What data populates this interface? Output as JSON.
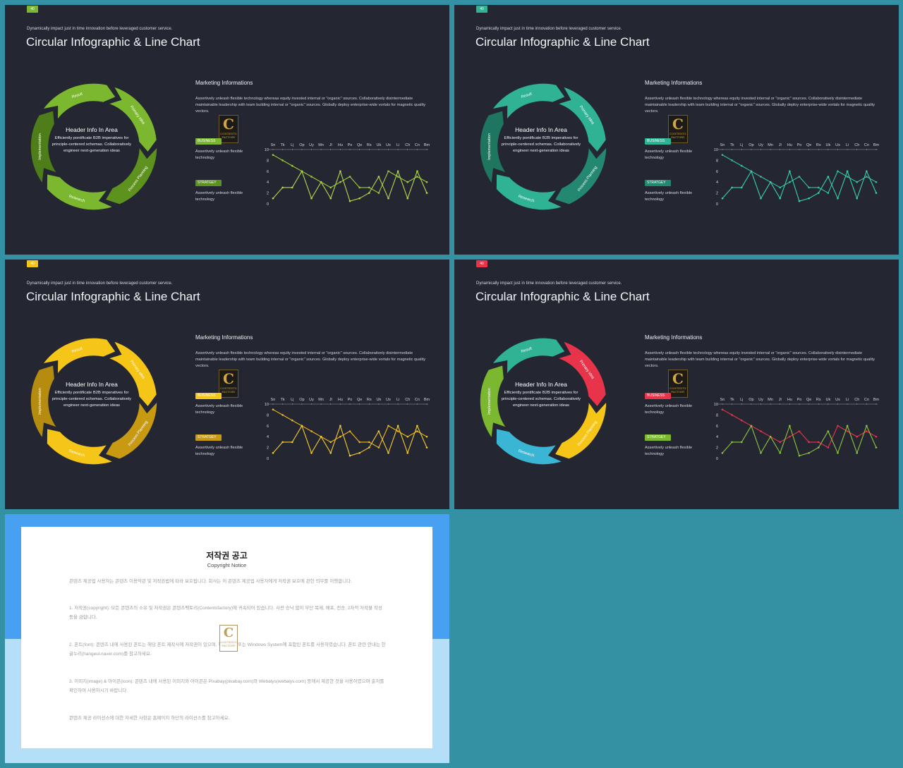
{
  "slides": [
    {
      "badge": "40",
      "subtitle": "Dynamically impact just in time innovation before leveraged customer service.",
      "title": "Circular Infographic & Line Chart",
      "center": {
        "title": "Header Info In Area",
        "body": "Efficiently pontificate B2B imperatives for principle-centered schemas. Collaboratively engineer next-generation ideas"
      },
      "ring_labels": [
        "Primary Idea",
        "Process Planning",
        "Research",
        "Implementation",
        "Result"
      ],
      "marketing": {
        "heading": "Marketing Informations",
        "body": "Assertively unleash flexible technology whereas equity invested internal or \"organic\" sources. Collaboratively disintermediate maintainable leadership with team building internal or \"organic\" sources. Globally deploy enterprise-wide vortals for magnetic quality vectors."
      },
      "tag1": "BUSINESS",
      "tag1_desc": "Assertively unleash flexible technology",
      "tag2": "STRATGEY",
      "tag2_desc": "Assertively unleash flexible technology",
      "logo": {
        "letter": "C",
        "text": "CONTENTS FACTORY"
      },
      "colors": {
        "badge": "#7cb82f",
        "tag1": "#7cb82f",
        "tag2": "#5e921f",
        "segments": [
          "#7cb82f",
          "#5e921f",
          "#7cb82f",
          "#4f7d1a",
          "#7cb82f"
        ],
        "series": [
          "#9ccc3a",
          "#b6d84a"
        ]
      }
    },
    {
      "badge": "40",
      "subtitle": "Dynamically impact just in time innovation before leveraged customer service.",
      "title": "Circular Infographic & Line Chart",
      "center": {
        "title": "Header Info In Area",
        "body": "Efficiently pontificate B2B imperatives for principle-centered schemas. Collaboratively engineer next-generation ideas"
      },
      "ring_labels": [
        "Primary Idea",
        "Process Planning",
        "Research",
        "Implementation",
        "Result"
      ],
      "marketing": {
        "heading": "Marketing Informations",
        "body": "Assertively unleash flexible technology whereas equity invested internal or \"organic\" sources. Collaboratively disintermediate maintainable leadership with team building internal or \"organic\" sources. Globally deploy enterprise-wide vortals for magnetic quality vectors."
      },
      "tag1": "BUSINESS",
      "tag1_desc": "Assertively unleash flexible technology",
      "tag2": "STRATGEY",
      "tag2_desc": "Assertively unleash flexible technology",
      "logo": {
        "letter": "C",
        "text": "CONTENTS FACTORY"
      },
      "colors": {
        "badge": "#2fb394",
        "tag1": "#2fb394",
        "tag2": "#23886f",
        "segments": [
          "#2fb394",
          "#23886f",
          "#2fb394",
          "#1e7560",
          "#2fb394"
        ],
        "series": [
          "#34c2a0",
          "#3ad0ad"
        ]
      }
    },
    {
      "badge": "40",
      "subtitle": "Dynamically impact just in time innovation before leveraged customer service.",
      "title": "Circular Infographic & Line Chart",
      "center": {
        "title": "Header Info In Area",
        "body": "Efficiently pontificate B2B imperatives for principle-centered schemas. Collaboratively engineer next-generation ideas"
      },
      "ring_labels": [
        "Primary Idea",
        "Process Planning",
        "Research",
        "Implementation",
        "Result"
      ],
      "marketing": {
        "heading": "Marketing Informations",
        "body": "Assertively unleash flexible technology whereas equity invested internal or \"organic\" sources. Collaboratively disintermediate maintainable leadership with team building internal or \"organic\" sources. Globally deploy enterprise-wide vortals for magnetic quality vectors."
      },
      "tag1": "BUSINESS",
      "tag1_desc": "Assertively unleash flexible technology",
      "tag2": "STRATGEY",
      "tag2_desc": "Assertively unleash flexible technology",
      "logo": {
        "letter": "C",
        "text": "CONTENTS FACTORY"
      },
      "colors": {
        "badge": "#f5c518",
        "tag1": "#f5c518",
        "tag2": "#c79a12",
        "segments": [
          "#f5c518",
          "#c79a12",
          "#f5c518",
          "#b58b10",
          "#f5c518"
        ],
        "series": [
          "#f0b81a",
          "#f7cc2a"
        ]
      }
    },
    {
      "badge": "40",
      "subtitle": "Dynamically impact just in time innovation before leveraged customer service.",
      "title": "Circular Infographic & Line Chart",
      "center": {
        "title": "Header Info In Area",
        "body": "Efficiently pontificate B2B imperatives for principle-centered schemas. Collaboratively engineer next-generation ideas"
      },
      "ring_labels": [
        "Primary Idea",
        "Process Planning",
        "Research",
        "Implementation",
        "Result"
      ],
      "marketing": {
        "heading": "Marketing Informations",
        "body": "Assertively unleash flexible technology whereas equity invested internal or \"organic\" sources. Collaboratively disintermediate maintainable leadership with team building internal or \"organic\" sources. Globally deploy enterprise-wide vortals for magnetic quality vectors."
      },
      "tag1": "BUSINESS",
      "tag1_desc": "Assertively unleash flexible technology",
      "tag2": "STRATGEY",
      "tag2_desc": "Assertively unleash flexible technology",
      "logo": {
        "letter": "C",
        "text": "CONTENTS FACTORY"
      },
      "colors": {
        "badge": "#e8344a",
        "tag1": "#e8344a",
        "tag2": "#7cb82f",
        "segments": [
          "#e8344a",
          "#f5c518",
          "#3ab6d4",
          "#7cb82f",
          "#2fb394"
        ],
        "series": [
          "#e8344a",
          "#8cc63f"
        ]
      }
    }
  ],
  "chart_data": {
    "type": "line",
    "categories": [
      "Sn",
      "Tk",
      "Lj",
      "Op",
      "Uy",
      "Mn",
      "Jl",
      "Hu",
      "Po",
      "Qe",
      "Rs",
      "Uk",
      "Us",
      "Li",
      "Ch",
      "Cn",
      "Bm"
    ],
    "ylim": [
      0,
      10
    ],
    "yticks": [
      0,
      2,
      4,
      6,
      8,
      10
    ],
    "series": [
      {
        "values": [
          9,
          8,
          7,
          6,
          5,
          4,
          3,
          4,
          5,
          3,
          3,
          2,
          6,
          5,
          4,
          5,
          4
        ]
      },
      {
        "values": [
          1,
          3,
          3,
          6,
          1,
          4,
          1,
          6,
          0.5,
          1,
          2,
          5,
          1,
          6,
          1,
          6,
          2
        ]
      }
    ]
  },
  "copyright": {
    "title": "저작권 공고",
    "subtitle": "Copyright Notice",
    "paragraphs": [
      "콘텐츠 제공업 사용자는 콘텐츠 이용약관 및 저작권법에 따라 보호됩니다. 회사는 이 콘텐츠 제공업 사용자에게 저작권 보호에 관한 의무를 이행합니다.",
      "1. 저작권(copyright): 모든 콘텐츠의 소유 및 저작권은 콘텐츠팩토리(Contentsfactory)에 귀속되어 있습니다. 사전 승낙 없이 무단 복제, 배포, 전송, 2차적 저작물 작성 등을 금합니다.",
      "2. 폰트(font): 콘텐츠 내에 사용된 폰트는 해당 폰트 제작사에 저작권이 있으며, 무료 폰트 또는 Windows System에 포함된 폰트를 사용하였습니다. 폰트 관련 안내는 한글누리(hangeul.naver.com)를 참고하세요.",
      "3. 이미지(image) & 아이콘(icon): 콘텐츠 내에 사용된 이미지와 아이콘은 Pixabay(pixabay.com)와 Webalys(webalys.com) 등에서 제공한 것을 사용하였으며 출처를 확인하여 사용하시기 바랍니다.",
      "콘텐츠 제공 라이선스에 대한 자세한 사항은 홈페이지 하단의 라이선스를 참고하세요."
    ]
  }
}
